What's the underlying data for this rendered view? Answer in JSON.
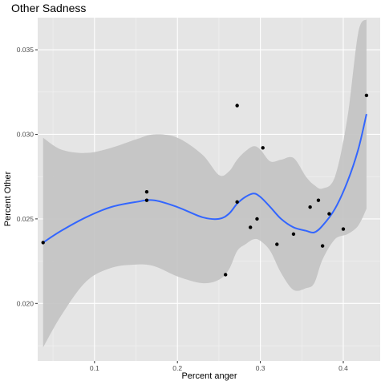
{
  "chart_data": {
    "type": "scatter",
    "title": "Other Sadness",
    "xlabel": "Percent anger",
    "ylabel": "Percent Other",
    "xlim": [
      0.0315,
      0.4445
    ],
    "ylim": [
      0.0166,
      0.0369
    ],
    "x_ticks": [
      0.1,
      0.2,
      0.3,
      0.4
    ],
    "x_tick_labels": [
      "0.1",
      "0.2",
      "0.3",
      "0.4"
    ],
    "y_ticks": [
      0.02,
      0.025,
      0.03,
      0.035
    ],
    "y_tick_labels": [
      "0.020",
      "0.025",
      "0.030",
      "0.035"
    ],
    "grid": true,
    "points": [
      {
        "x": 0.038,
        "y": 0.0236
      },
      {
        "x": 0.163,
        "y": 0.0266
      },
      {
        "x": 0.163,
        "y": 0.0261
      },
      {
        "x": 0.258,
        "y": 0.0217
      },
      {
        "x": 0.272,
        "y": 0.0317
      },
      {
        "x": 0.272,
        "y": 0.026
      },
      {
        "x": 0.288,
        "y": 0.0245
      },
      {
        "x": 0.296,
        "y": 0.025
      },
      {
        "x": 0.303,
        "y": 0.0292
      },
      {
        "x": 0.32,
        "y": 0.0235
      },
      {
        "x": 0.34,
        "y": 0.0241
      },
      {
        "x": 0.36,
        "y": 0.0257
      },
      {
        "x": 0.37,
        "y": 0.0261
      },
      {
        "x": 0.375,
        "y": 0.0234
      },
      {
        "x": 0.383,
        "y": 0.0253
      },
      {
        "x": 0.4,
        "y": 0.0244
      },
      {
        "x": 0.428,
        "y": 0.0323
      }
    ],
    "smooth": {
      "x": [
        0.038,
        0.06,
        0.09,
        0.12,
        0.15,
        0.172,
        0.2,
        0.23,
        0.25,
        0.262,
        0.272,
        0.282,
        0.292,
        0.3,
        0.312,
        0.325,
        0.34,
        0.355,
        0.365,
        0.375,
        0.39,
        0.405,
        0.418,
        0.428
      ],
      "y": [
        0.0236,
        0.0243,
        0.0251,
        0.0257,
        0.026,
        0.0261,
        0.0257,
        0.0251,
        0.025,
        0.0253,
        0.0259,
        0.0263,
        0.0265,
        0.0263,
        0.0257,
        0.025,
        0.0245,
        0.0243,
        0.0242,
        0.0246,
        0.0256,
        0.0272,
        0.0291,
        0.0312
      ],
      "upper": [
        0.0298,
        0.0291,
        0.0289,
        0.0292,
        0.0297,
        0.03,
        0.0298,
        0.0288,
        0.0276,
        0.0278,
        0.0285,
        0.029,
        0.0293,
        0.0291,
        0.0284,
        0.0285,
        0.0286,
        0.0275,
        0.027,
        0.0268,
        0.0275,
        0.031,
        0.036,
        0.0368
      ],
      "lower": [
        0.0174,
        0.0193,
        0.0213,
        0.0221,
        0.0223,
        0.0222,
        0.0216,
        0.0212,
        0.0214,
        0.022,
        0.0231,
        0.0235,
        0.0238,
        0.0237,
        0.0231,
        0.0218,
        0.0208,
        0.0209,
        0.0212,
        0.0226,
        0.0238,
        0.0241,
        0.0246,
        0.0256
      ]
    },
    "colors": {
      "panel": "#e5e5e5",
      "grid_major": "#ffffff",
      "band": "#c2c2c2",
      "line": "#3366ff",
      "point": "#000000"
    }
  }
}
